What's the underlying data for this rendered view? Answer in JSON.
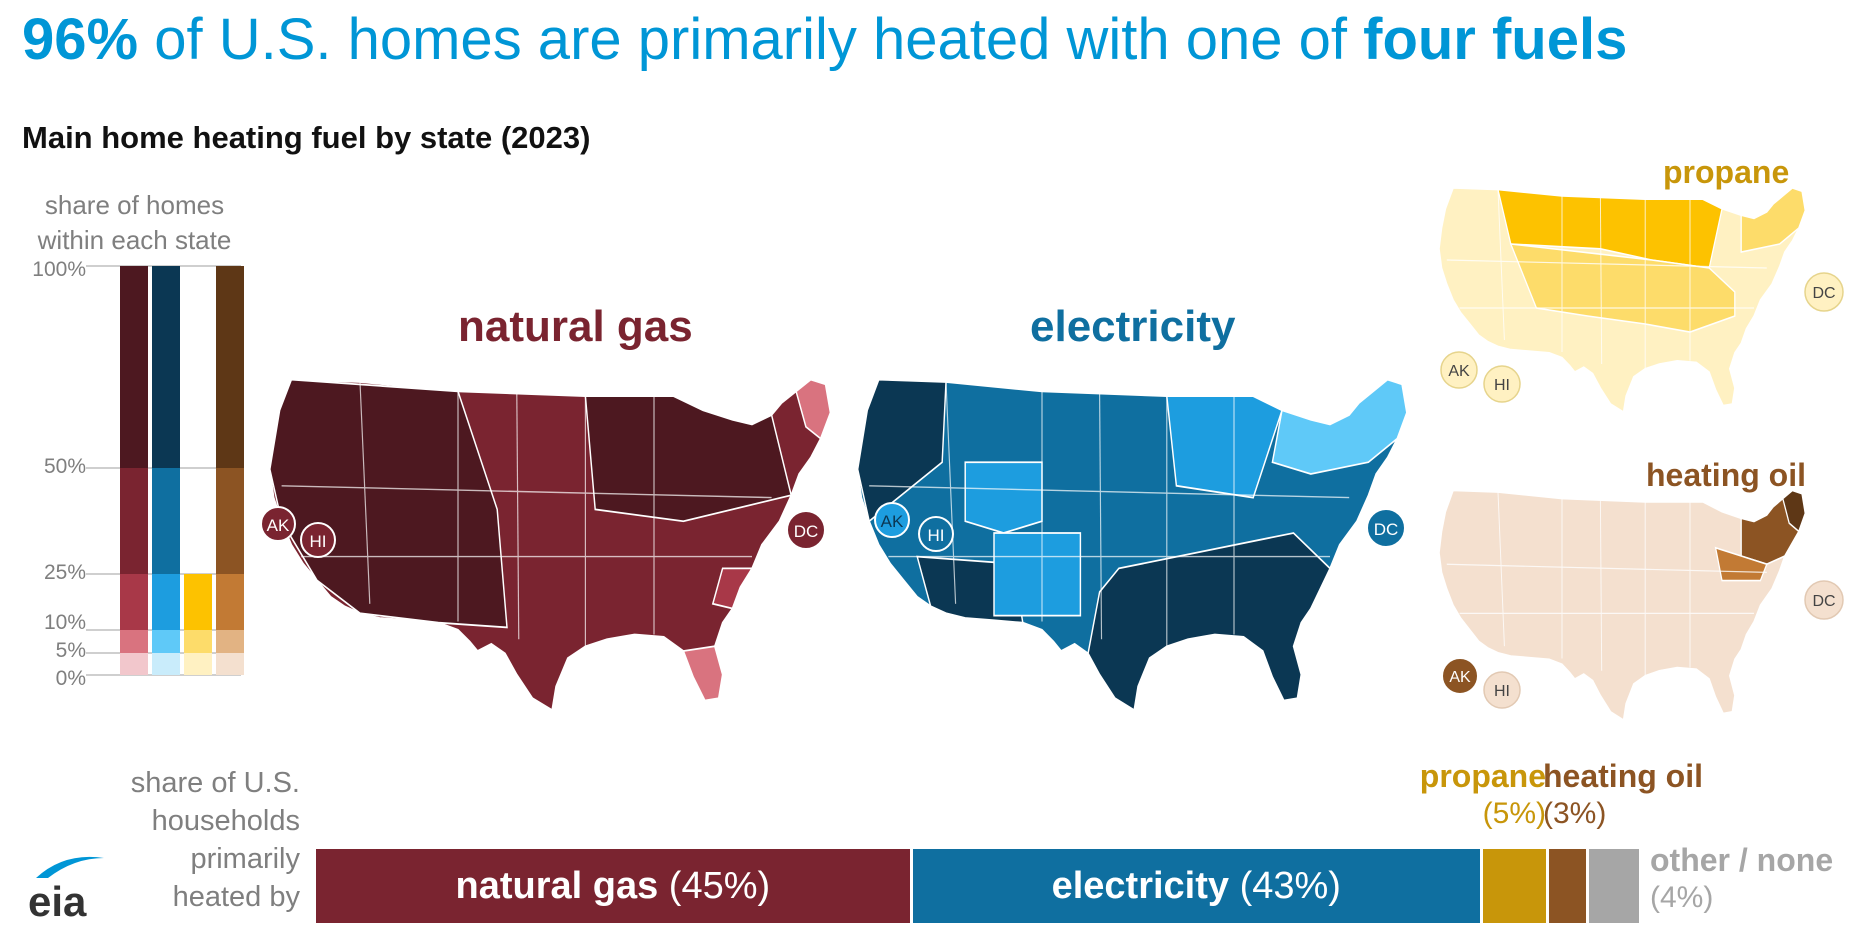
{
  "headline": {
    "pct": "96%",
    "middle": " of U.S. homes are primarily heated with one of ",
    "end": "four fuels"
  },
  "subtitle": "Main home heating fuel by state (2023)",
  "legend": {
    "title_line1": "share of homes",
    "title_line2": "within each state",
    "ticks": [
      "100%",
      "50%",
      "25%",
      "10%",
      "5%",
      "0%"
    ]
  },
  "maps": {
    "natural_gas": {
      "title": "natural gas",
      "labels": [
        "AK",
        "HI",
        "DC"
      ]
    },
    "electricity": {
      "title": "electricity",
      "labels": [
        "AK",
        "HI",
        "DC"
      ]
    },
    "propane": {
      "title": "propane",
      "labels": [
        "AK",
        "HI",
        "DC"
      ]
    },
    "heating_oil": {
      "title": "heating oil",
      "labels": [
        "AK",
        "HI",
        "DC"
      ]
    }
  },
  "bottom": {
    "label_lines": [
      "share of U.S.",
      "households",
      "primarily",
      "heated by"
    ],
    "natural_gas_name": "natural gas",
    "natural_gas_pct": " (45%)",
    "electricity_name": "electricity",
    "electricity_pct": " (43%)",
    "propane_name": "propane",
    "propane_pct": "(5%)",
    "heating_oil_name": "heating oil",
    "heating_oil_pct": "(3%)",
    "other_name": "other / none",
    "other_pct": "(4%)"
  },
  "logo": "eia",
  "colors": {
    "natural_gas": "#7a2430",
    "electricity": "#0f6fa0",
    "propane": "#c8960a",
    "heating_oil": "#8c5423",
    "other": "#a6a6a6",
    "headline": "#0096d6"
  },
  "chart_data": [
    {
      "type": "bar",
      "title": "96% of U.S. homes are primarily heated with one of four fuels",
      "xlabel": "",
      "ylabel": "share of U.S. households primarily heated by",
      "categories": [
        "natural gas",
        "electricity",
        "propane",
        "heating oil",
        "other / none"
      ],
      "values": [
        45,
        43,
        5,
        3,
        4
      ],
      "stacked": true,
      "unit": "%"
    },
    {
      "type": "heatmap",
      "title": "Main home heating fuel by state (2023)",
      "legend_title": "share of homes within each state",
      "legend_breaks": [
        0,
        5,
        10,
        25,
        50,
        100
      ],
      "series": [
        {
          "name": "natural gas"
        },
        {
          "name": "electricity"
        },
        {
          "name": "propane"
        },
        {
          "name": "heating oil"
        }
      ]
    }
  ]
}
